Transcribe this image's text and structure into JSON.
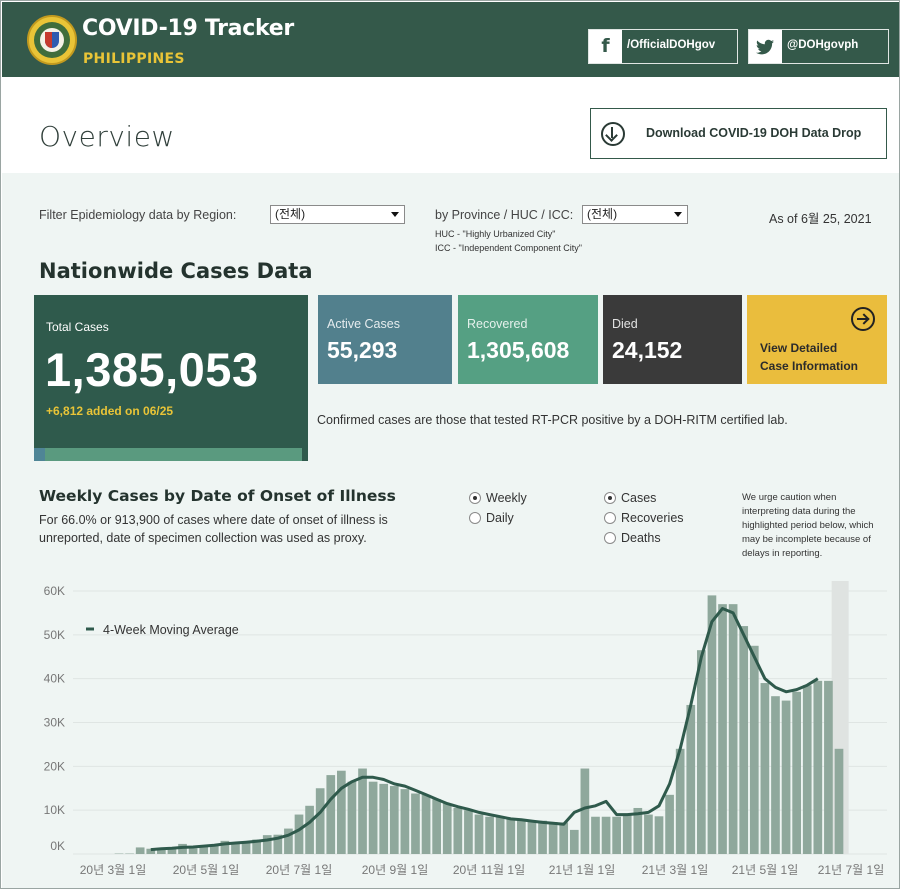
{
  "header": {
    "title": "COVID-19 Tracker",
    "subtitle": "PHILIPPINES",
    "facebook_icon": "f",
    "facebook_label": "/OfficialDOHgov",
    "twitter_label": "@DOHgovph"
  },
  "overview": {
    "title": "Overview",
    "download_label": "Download COVID-19 DOH Data Drop"
  },
  "filters": {
    "region_label": "Filter Epidemiology data by Region:",
    "region_value": "(전체)",
    "province_label": "by Province / HUC / ICC:",
    "province_value": "(전체)",
    "huc_note": "HUC - \"Highly Urbanized City\"",
    "icc_note": "ICC - \"Independent Component City\"",
    "as_of": "As of 6월 25, 2021"
  },
  "nationwide": {
    "title": "Nationwide Cases Data",
    "total_label": "Total Cases",
    "total_value": "1,385,053",
    "added": "+6,812 added on 06/25",
    "active_label": "Active Cases",
    "active_value": "55,293",
    "recovered_label": "Recovered",
    "recovered_value": "1,305,608",
    "died_label": "Died",
    "died_value": "24,152",
    "detail_line1": "View Detailed",
    "detail_line2": "Case Information",
    "confirm_note": "Confirmed cases are those that tested RT-PCR positive by a DOH-RITM certified lab.",
    "active_fraction": 0.04
  },
  "weekly": {
    "title": "Weekly Cases by Date of Onset of Illness",
    "description": "For 66.0% or 913,900 of cases where date of onset of illness is unreported, date of specimen collection was used as proxy.",
    "period_options": [
      {
        "label": "Weekly",
        "selected": true
      },
      {
        "label": "Daily",
        "selected": false
      }
    ],
    "metric_options": [
      {
        "label": "Cases",
        "selected": true
      },
      {
        "label": "Recoveries",
        "selected": false
      },
      {
        "label": "Deaths",
        "selected": false
      }
    ],
    "caution": "We urge caution when interpreting data during the highlighted period below, which may be incomplete because of delays in reporting."
  },
  "colors": {
    "brand_green": "#34594a",
    "gold": "#e9c437",
    "active": "#52808d",
    "recovered": "#55a083",
    "died": "#3a3a3a",
    "bar": "#8fa89c",
    "line": "#2f5a4c"
  },
  "chart_data": {
    "type": "bar",
    "legend": "4-Week Moving Average",
    "y_ticks": [
      "0K",
      "10K",
      "20K",
      "30K",
      "40K",
      "50K",
      "60K"
    ],
    "ylim": [
      0,
      60000
    ],
    "x_ticks": [
      "20년 3월 1일",
      "20년 5월 1일",
      "20년 7월 1일",
      "20년 9월 1일",
      "20년 11월 1일",
      "21년 1월 1일",
      "21년 3월 1일",
      "21년 5월 1일",
      "21년 7월 1일"
    ],
    "values": [
      100,
      100,
      1500,
      1200,
      1300,
      1500,
      2300,
      1300,
      1700,
      2000,
      3000,
      2400,
      2900,
      3300,
      4300,
      4400,
      5800,
      9000,
      11000,
      15000,
      18000,
      19000,
      16500,
      19500,
      16500,
      16000,
      15500,
      14800,
      13800,
      13500,
      12500,
      11500,
      10500,
      10000,
      9000,
      8500,
      8500,
      8200,
      7800,
      7500,
      7600,
      7300,
      7200,
      5500,
      19500,
      8500,
      8500,
      8500,
      9000,
      10500,
      9000,
      8600,
      13500,
      24000,
      34000,
      46500,
      59000,
      57000,
      57000,
      52000,
      47500,
      39000,
      36000,
      35000,
      37000,
      38500,
      39500,
      39500,
      24000
    ],
    "moving_average": [
      null,
      null,
      null,
      1000,
      1200,
      1300,
      1500,
      1600,
      1800,
      2000,
      2300,
      2500,
      2700,
      2900,
      3200,
      3600,
      4300,
      5500,
      7200,
      9500,
      12500,
      15000,
      16500,
      17500,
      17500,
      17000,
      16000,
      15500,
      14500,
      13500,
      12500,
      11500,
      10800,
      10200,
      9500,
      9000,
      8500,
      8000,
      7800,
      7500,
      7200,
      7000,
      6800,
      9500,
      10500,
      11000,
      12000,
      9000,
      9000,
      9200,
      9500,
      11000,
      16000,
      24000,
      34000,
      45000,
      53000,
      56000,
      55000,
      50000,
      45000,
      40000,
      38000,
      37000,
      37500,
      38500,
      40000,
      null,
      null
    ],
    "highlight_last": 1
  }
}
